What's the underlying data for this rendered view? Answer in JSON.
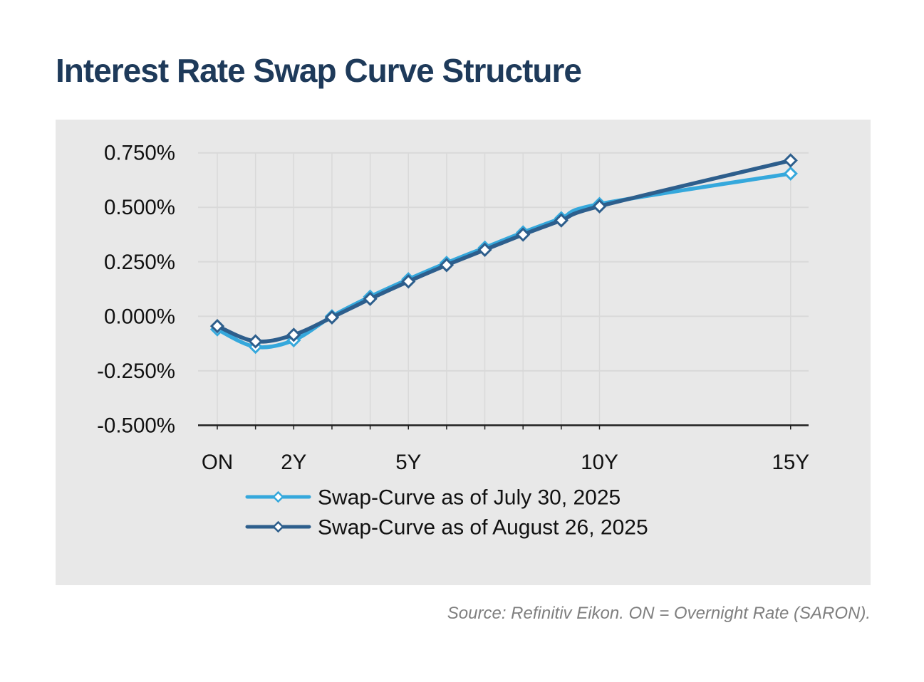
{
  "page": {
    "title": "Interest Rate Swap Curve Structure",
    "source_note": "Source: Refinitiv Eikon. ON = Overnight Rate (SARON)."
  },
  "colors": {
    "title_text": "#1e3a5a",
    "panel_background": "#e8e8e8",
    "gridline": "#d9d9d9",
    "axis": "#1f1f1f",
    "axis_text": "#111111",
    "source_text": "#7f7f7f",
    "marker_fill": "#ffffff",
    "series_july": "#35a8dc",
    "series_august": "#2d5e8c"
  },
  "chart_data": {
    "type": "line",
    "title": "Interest Rate Swap Curve Structure",
    "xlabel": "",
    "ylabel": "",
    "grid": true,
    "legend_position": "bottom-inside",
    "marker": "diamond",
    "x_categories": [
      "ON",
      "1Y",
      "2Y",
      "3Y",
      "4Y",
      "5Y",
      "6Y",
      "7Y",
      "8Y",
      "9Y",
      "10Y",
      "15Y"
    ],
    "x_years": [
      0,
      1,
      2,
      3,
      4,
      5,
      6,
      7,
      8,
      9,
      10,
      15
    ],
    "x_axis_tick_labels": [
      {
        "label": "ON",
        "year": 0
      },
      {
        "label": "2Y",
        "year": 2
      },
      {
        "label": "5Y",
        "year": 5
      },
      {
        "label": "10Y",
        "year": 10
      },
      {
        "label": "15Y",
        "year": 15
      }
    ],
    "y_axis_ticks": [
      {
        "label": "0.750%",
        "value": 0.75
      },
      {
        "label": "0.500%",
        "value": 0.5
      },
      {
        "label": "0.250%",
        "value": 0.25
      },
      {
        "label": "0.000%",
        "value": 0.0
      },
      {
        "label": "-0.250%",
        "value": -0.25
      },
      {
        "label": "-0.500%",
        "value": -0.5
      }
    ],
    "y_range": [
      -0.5,
      0.75
    ],
    "series": [
      {
        "name": "Swap-Curve as of July 30, 2025",
        "color": "#35a8dc",
        "values_pct": [
          -0.06,
          -0.14,
          -0.11,
          0.0,
          0.09,
          0.17,
          0.245,
          0.315,
          0.385,
          0.45,
          0.515,
          0.655
        ]
      },
      {
        "name": "Swap-Curve as of August 26, 2025",
        "color": "#2d5e8c",
        "values_pct": [
          -0.045,
          -0.115,
          -0.085,
          -0.005,
          0.08,
          0.16,
          0.235,
          0.305,
          0.375,
          0.44,
          0.505,
          0.715
        ]
      }
    ]
  }
}
